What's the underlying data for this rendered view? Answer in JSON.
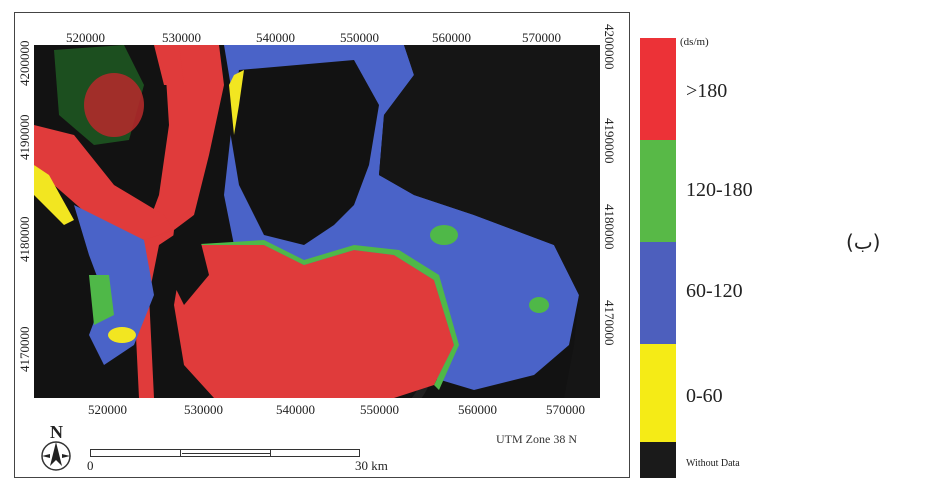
{
  "map": {
    "x_ticks_top": [
      "520000",
      "530000",
      "540000",
      "550000",
      "560000",
      "570000"
    ],
    "x_ticks_bottom": [
      "520000",
      "530000",
      "540000",
      "550000",
      "560000",
      "570000"
    ],
    "y_ticks_left": [
      "4200000",
      "4190000",
      "4180000",
      "4170000"
    ],
    "y_ticks_right": [
      "4200000",
      "4190000",
      "4180000",
      "4170000"
    ],
    "north_label": "N",
    "utm_zone": "UTM Zone 38 N",
    "scale_start": "0",
    "scale_end": "30 km",
    "colors": {
      "background": "#111111",
      "red": "#e03b3b",
      "green": "#4fb848",
      "blue": "#4a63c8",
      "yellow": "#f2e621"
    }
  },
  "legend": {
    "unit": "(ds/m)",
    "classes": [
      {
        "label": ">180",
        "color": "#ec3237"
      },
      {
        "label": "120-180",
        "color": "#58b947"
      },
      {
        "label": "60-120",
        "color": "#4d5fbd"
      },
      {
        "label": "0-60",
        "color": "#f5eb16"
      },
      {
        "label": "Without Data",
        "color": "#1a1a1a"
      }
    ]
  },
  "side_label": "(ب)"
}
